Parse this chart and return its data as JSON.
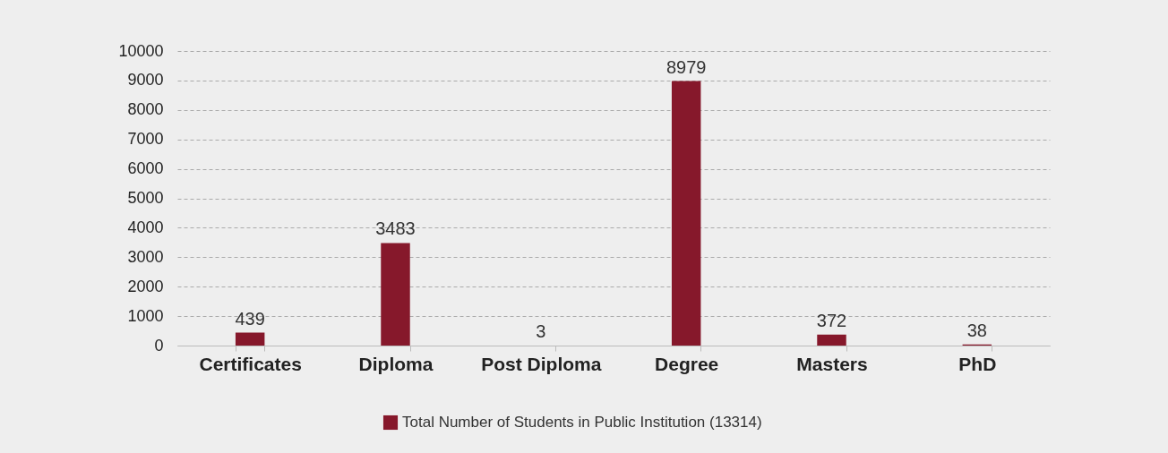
{
  "chart_data": {
    "type": "bar",
    "categories": [
      "Certificates",
      "Diploma",
      "Post Diploma",
      "Degree",
      "Masters",
      "PhD"
    ],
    "series": [
      {
        "name": "Total Number of Students in Public Institution (13314)",
        "color": "#86182b",
        "values": [
          439,
          3483,
          3,
          8979,
          372,
          38
        ]
      }
    ],
    "ylim": [
      0,
      10000
    ],
    "yticks": [
      0,
      1000,
      2000,
      3000,
      4000,
      5000,
      6000,
      7000,
      8000,
      9000,
      10000
    ],
    "grid": "y",
    "legend": "bottom",
    "data_labels": true
  }
}
